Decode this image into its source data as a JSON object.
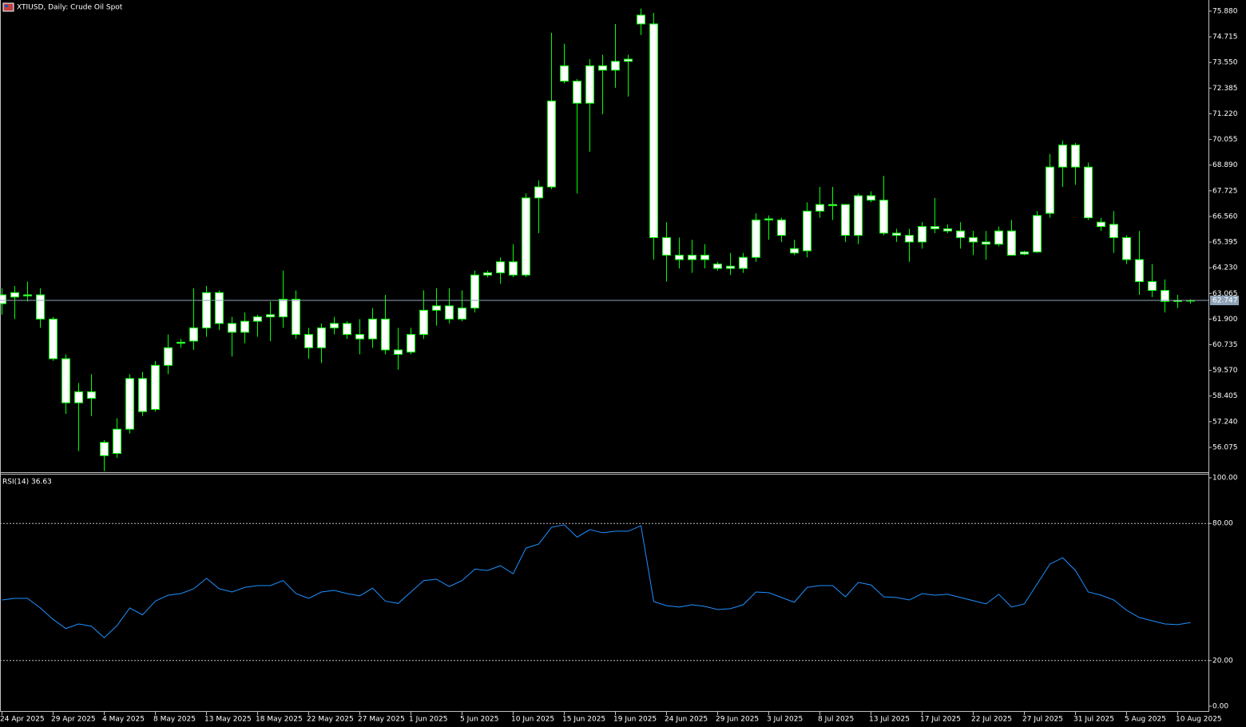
{
  "chart_data": [
    {
      "type": "candlestick",
      "title": "XTIUSD, Daily:  Crude Oil Spot",
      "categories": [
        "24 Apr 2025",
        null,
        null,
        null,
        "29 Apr 2025",
        null,
        null,
        null,
        "4 May 2025",
        null,
        null,
        null,
        "8 May 2025",
        null,
        null,
        null,
        "13 May 2025",
        null,
        null,
        null,
        "18 May 2025",
        null,
        null,
        null,
        "22 May 2025",
        null,
        null,
        null,
        "27 May 2025",
        null,
        null,
        null,
        "1 Jun 2025",
        null,
        null,
        null,
        "5 Jun 2025",
        null,
        null,
        null,
        "10 Jun 2025",
        null,
        null,
        null,
        "15 Jun 2025",
        null,
        null,
        null,
        "19 Jun 2025",
        null,
        null,
        null,
        "24 Jun 2025",
        null,
        null,
        null,
        "29 Jun 2025",
        null,
        null,
        null,
        "3 Jul 2025",
        null,
        null,
        null,
        "8 Jul 2025",
        null,
        null,
        null,
        "13 Jul 2025",
        null,
        null,
        null,
        "17 Jul 2025",
        null,
        null,
        null,
        "22 Jul 2025",
        null,
        null,
        null,
        "27 Jul 2025",
        null,
        null,
        null,
        "31 Jul 2025",
        null,
        null,
        null,
        "5 Aug 2025",
        null,
        null,
        null,
        "10 Aug 2025",
        null
      ],
      "open": [
        62.6,
        62.9,
        63.0,
        63.0,
        61.9,
        60.1,
        58.1,
        58.6,
        56.3,
        55.8,
        56.9,
        57.7,
        57.8,
        59.8,
        60.8,
        60.9,
        61.5,
        63.1,
        61.7,
        61.3,
        61.8,
        62.0,
        62.0,
        62.8,
        61.2,
        60.6,
        61.5,
        61.7,
        61.2,
        61.0,
        61.9,
        60.5,
        60.4,
        61.2,
        62.3,
        62.5,
        61.9,
        62.4,
        63.9,
        64.0,
        64.5,
        63.9,
        67.4,
        67.9,
        72.7,
        72.7,
        71.7,
        73.4,
        73.2,
        73.6,
        75.3,
        75.3,
        65.6,
        64.8,
        64.6,
        64.8,
        64.4,
        64.2,
        64.2,
        64.7,
        66.4,
        66.4,
        65.1,
        65.0,
        66.8,
        67.1,
        67.1,
        65.7,
        67.5,
        67.3,
        65.8,
        65.7,
        65.4,
        66.1,
        66.0,
        65.9,
        65.6,
        65.4,
        65.3,
        65.9,
        64.85,
        64.95,
        66.7,
        68.8,
        69.8,
        68.8,
        66.3,
        66.2,
        65.6,
        64.6,
        63.6,
        63.2,
        62.7,
        62.75
      ],
      "high": [
        63.3,
        63.4,
        63.6,
        63.3,
        62.0,
        60.3,
        59.0,
        59.4,
        56.4,
        57.4,
        59.4,
        59.5,
        60.0,
        61.2,
        61.0,
        63.3,
        63.4,
        63.2,
        62.0,
        62.2,
        62.1,
        62.7,
        64.1,
        63.2,
        61.5,
        61.7,
        62.0,
        61.8,
        61.9,
        62.4,
        63.0,
        61.5,
        61.5,
        63.2,
        63.3,
        63.3,
        63.2,
        64.1,
        64.1,
        64.7,
        65.3,
        67.6,
        68.2,
        74.9,
        74.4,
        72.8,
        73.7,
        73.9,
        75.3,
        73.9,
        76.0,
        75.8,
        66.3,
        65.6,
        65.5,
        65.3,
        64.5,
        64.9,
        64.9,
        66.7,
        66.6,
        66.5,
        65.5,
        67.2,
        67.9,
        67.9,
        67.1,
        67.6,
        67.7,
        68.4,
        66.0,
        66.0,
        66.3,
        67.4,
        66.2,
        66.3,
        65.9,
        65.9,
        66.1,
        66.4,
        65.0,
        66.8,
        69.4,
        70.0,
        69.9,
        69.0,
        66.5,
        66.8,
        65.7,
        65.9,
        64.4,
        63.7,
        63.0,
        62.8
      ],
      "low": [
        62.1,
        61.9,
        62.7,
        61.5,
        60.0,
        57.6,
        55.9,
        57.5,
        55.0,
        55.6,
        56.7,
        57.5,
        57.7,
        59.4,
        60.6,
        60.5,
        61.1,
        61.4,
        60.2,
        60.8,
        61.1,
        60.9,
        61.5,
        61.0,
        60.1,
        59.9,
        61.2,
        61.0,
        60.3,
        60.6,
        60.3,
        59.6,
        60.3,
        61.0,
        61.6,
        61.7,
        61.8,
        62.2,
        63.8,
        63.5,
        63.8,
        63.8,
        65.8,
        67.8,
        72.6,
        67.6,
        69.5,
        71.2,
        72.4,
        72.0,
        74.8,
        64.6,
        63.6,
        64.2,
        64.0,
        64.2,
        64.1,
        63.9,
        64.0,
        64.5,
        65.5,
        65.4,
        64.8,
        64.7,
        66.5,
        66.4,
        65.4,
        65.3,
        67.2,
        65.7,
        65.4,
        64.5,
        65.1,
        65.8,
        65.8,
        65.1,
        64.8,
        64.6,
        65.2,
        64.8,
        64.8,
        64.9,
        66.5,
        67.9,
        68.0,
        66.4,
        65.9,
        64.9,
        64.4,
        63.0,
        62.9,
        62.2,
        62.4,
        62.6
      ],
      "close": [
        63.0,
        63.1,
        62.95,
        61.9,
        60.1,
        58.1,
        58.6,
        58.3,
        55.7,
        56.9,
        59.2,
        59.2,
        59.8,
        60.6,
        60.85,
        61.5,
        63.1,
        61.7,
        61.3,
        61.8,
        62.0,
        62.1,
        62.8,
        61.2,
        60.6,
        61.5,
        61.7,
        61.2,
        61.0,
        61.9,
        60.5,
        60.3,
        61.2,
        62.3,
        62.5,
        61.9,
        62.4,
        63.9,
        64.0,
        64.5,
        63.9,
        67.4,
        67.9,
        71.8,
        73.4,
        71.7,
        73.4,
        73.2,
        73.6,
        73.7,
        75.7,
        65.6,
        64.8,
        64.6,
        64.8,
        64.6,
        64.2,
        64.3,
        64.7,
        66.4,
        66.45,
        65.7,
        64.9,
        66.8,
        67.1,
        67.05,
        65.7,
        67.5,
        67.3,
        65.8,
        65.7,
        65.4,
        66.1,
        66.0,
        65.9,
        65.6,
        65.4,
        65.3,
        65.9,
        64.8,
        64.95,
        66.6,
        68.8,
        69.8,
        68.8,
        66.5,
        66.1,
        65.6,
        64.6,
        63.6,
        63.2,
        62.7,
        62.75,
        62.747
      ],
      "color": "#00ff00",
      "body_color": "#ffffff",
      "price_line_color": "#8fa3b8",
      "ylim": [
        54.95,
        76.35
      ],
      "yticks": [
        {
          "value": 75.88,
          "label": "75.880"
        },
        74.715,
        {
          "value": 73.55,
          "label": "73.550"
        },
        72.385,
        {
          "value": 71.22,
          "label": "71.220"
        },
        70.055,
        {
          "value": 68.89,
          "label": "68.890"
        },
        67.725,
        {
          "value": 66.56,
          "label": "66.560"
        },
        65.395,
        {
          "value": 64.23,
          "label": "64.230"
        },
        63.065,
        {
          "value": 61.9,
          "label": "61.900"
        },
        60.735,
        {
          "value": 59.57,
          "label": "59.570"
        },
        58.405,
        {
          "value": 57.24,
          "label": "57.240"
        },
        56.075
      ]
    },
    {
      "type": "line",
      "series": [
        {
          "name": "RSI(14)",
          "color": "#1e90ff",
          "values": [
            46.5,
            47.2,
            47.2,
            43,
            38,
            34,
            36,
            35,
            30,
            35.3,
            43,
            40,
            46,
            48.6,
            49.3,
            51.4,
            56,
            51.4,
            50,
            52,
            52.8,
            52.8,
            55,
            49.3,
            47.2,
            50,
            50.7,
            49.3,
            48.3,
            51.7,
            46,
            45,
            50,
            55,
            55.6,
            52.4,
            55,
            60,
            59.4,
            61.5,
            58,
            69.2,
            71,
            78.3,
            79.4,
            74,
            77.3,
            75.9,
            76.6,
            76.6,
            79,
            45.8,
            44,
            43.4,
            44.4,
            43.7,
            42.3,
            42.7,
            44.4,
            50,
            49.7,
            47.6,
            45.5,
            52,
            52.8,
            52.8,
            47.9,
            54.2,
            53.1,
            47.9,
            47.6,
            46.5,
            49.3,
            48.6,
            49,
            47.6,
            46.2,
            44.8,
            49,
            43.4,
            44.8,
            53.5,
            62.2,
            65,
            59.4,
            50,
            48.6,
            46.5,
            42,
            38.8,
            37.4,
            36,
            35.7,
            36.63
          ]
        }
      ],
      "ylim": [
        0,
        100
      ],
      "yticks": [
        {
          "value": 100,
          "label": "100.00"
        },
        {
          "value": 80,
          "label": "80.00"
        },
        {
          "value": 20,
          "label": "20.00"
        },
        {
          "value": 0,
          "label": "0.00"
        }
      ],
      "levels": [
        80,
        20
      ]
    }
  ]
}
